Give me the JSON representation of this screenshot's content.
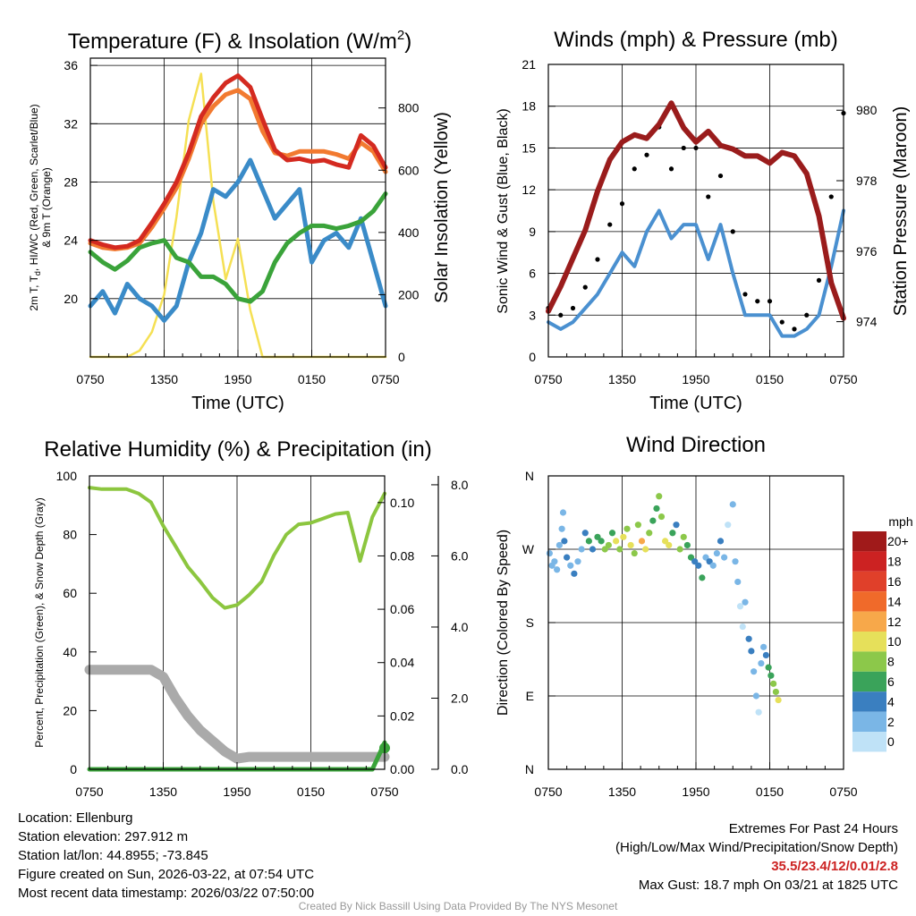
{
  "panels": {
    "temperature": {
      "title": "Temperature (F) & Insolation (W/m",
      "title_sup": "2",
      "title_close": ")",
      "left_label": "2m T, T",
      "left_label_sub": "d",
      "left_label_rest": ", HI/WC (Red, Green, Scarlet/Blue)",
      "left_label_line2": "& 9m T (Orange)",
      "right_label": "Solar Insolation (Yellow)",
      "xlabel": "Time (UTC)"
    },
    "winds": {
      "title": "Winds (mph) & Pressure (mb)",
      "left_label": "Sonic Wind & Gust (Blue, Black)",
      "right_label": "Station Pressure (Maroon)",
      "xlabel": "Time (UTC)"
    },
    "humidity": {
      "title": "Relative Humidity (%) & Precipitation (in)",
      "left_label": "Percent, Precipitation (Green), & Snow Depth (Gray)"
    },
    "direction": {
      "title": "Wind Direction",
      "left_label": "Direction (Colored By Speed)",
      "legend_title": "mph",
      "legend": [
        {
          "label": "20+",
          "color": "#a01a1a"
        },
        {
          "label": "18",
          "color": "#cc2222"
        },
        {
          "label": "16",
          "color": "#e0402a"
        },
        {
          "label": "14",
          "color": "#f06a2a"
        },
        {
          "label": "12",
          "color": "#f7a84a"
        },
        {
          "label": "10",
          "color": "#e6e05a"
        },
        {
          "label": "8",
          "color": "#8cc84a"
        },
        {
          "label": "6",
          "color": "#3aa35a"
        },
        {
          "label": "4",
          "color": "#3a7fc0"
        },
        {
          "label": "2",
          "color": "#7ab6e6"
        },
        {
          "label": "0",
          "color": "#bfe2f7"
        }
      ]
    }
  },
  "info": {
    "location": "Location: Ellenburg",
    "elevation": "Station elevation: 297.912 m",
    "latlon": "Station lat/lon: 44.8955; -73.845",
    "created": "Figure created on Sun, 2026-03-22, at 07:54 UTC",
    "recent": "Most recent data timestamp: 2026/03/22 07:50:00",
    "extremes_title": "Extremes For Past 24 Hours",
    "extremes_sub": "(High/Low/Max Wind/Precipitation/Snow Depth)",
    "extremes_values": "35.5/23.4/12/0.01/2.8",
    "max_gust": "Max Gust: 18.7 mph On 03/21 at 1825 UTC",
    "credit": "Created By Nick Bassill Using Data Provided By The NYS Mesonet"
  },
  "chart_data": [
    {
      "type": "line",
      "title": "Temperature (F) & Insolation (W/m2)",
      "xlabel": "Time (UTC)",
      "ylabel": "2m T, Td, HI/WC (Red, Green, Scarlet/Blue) & 9m T (Orange)",
      "ylabel_right": "Solar Insolation (Yellow)",
      "x_ticks": [
        "0750",
        "1350",
        "1950",
        "0150",
        "0750"
      ],
      "x": [
        0,
        1,
        2,
        3,
        4,
        5,
        6,
        7,
        8,
        9,
        10,
        11,
        12,
        13,
        14,
        15,
        16,
        17,
        18,
        19,
        20,
        21,
        22,
        23,
        24
      ],
      "ylim": [
        16,
        36.5
      ],
      "yticks": [
        20,
        24,
        28,
        32,
        36
      ],
      "y2lim": [
        0,
        960
      ],
      "y2ticks": [
        0,
        200,
        400,
        600,
        800
      ],
      "series": [
        {
          "name": "2m T",
          "color": "#d42a20",
          "axis": "left",
          "values": [
            24.0,
            23.7,
            23.5,
            23.6,
            24.0,
            25.2,
            26.5,
            28.0,
            30.0,
            32.5,
            33.8,
            34.8,
            35.3,
            34.5,
            32.3,
            30.2,
            29.5,
            29.6,
            29.4,
            29.5,
            29.2,
            29.0,
            31.2,
            30.5,
            29.0
          ]
        },
        {
          "name": "9m T",
          "color": "#f27a30",
          "axis": "left",
          "values": [
            23.8,
            23.5,
            23.4,
            23.5,
            23.8,
            24.9,
            26.2,
            27.6,
            29.6,
            32.0,
            33.2,
            34.0,
            34.3,
            33.7,
            31.5,
            30.0,
            29.8,
            30.1,
            30.1,
            30.1,
            29.9,
            29.6,
            30.7,
            30.1,
            28.7
          ]
        },
        {
          "name": "Td",
          "color": "#3aa33a",
          "axis": "left",
          "values": [
            23.2,
            22.5,
            22.0,
            22.6,
            23.5,
            23.8,
            24.0,
            22.8,
            22.5,
            21.5,
            21.5,
            21.0,
            20.0,
            19.8,
            20.5,
            22.5,
            23.8,
            24.5,
            25.0,
            25.0,
            24.8,
            25.0,
            25.3,
            26.0,
            27.2
          ]
        },
        {
          "name": "HI/WC",
          "color": "#3a8bc8",
          "axis": "left",
          "values": [
            19.5,
            20.5,
            19.0,
            21.0,
            20.0,
            19.5,
            18.5,
            19.5,
            22.5,
            24.5,
            27.5,
            27.0,
            28.0,
            29.5,
            27.5,
            25.5,
            26.5,
            27.5,
            22.5,
            24.0,
            24.5,
            23.5,
            25.5,
            22.5,
            19.5
          ]
        },
        {
          "name": "Solar Insolation",
          "color": "#f5e054",
          "axis": "right",
          "values": [
            0,
            0,
            0,
            0,
            20,
            80,
            200,
            450,
            760,
            910,
            500,
            250,
            380,
            150,
            0,
            0,
            0,
            0,
            0,
            0,
            0,
            0,
            0,
            0,
            0
          ]
        }
      ]
    },
    {
      "type": "line",
      "title": "Winds (mph) & Pressure (mb)",
      "xlabel": "Time (UTC)",
      "ylabel": "Sonic Wind & Gust (Blue, Black)",
      "ylabel_right": "Station Pressure (Maroon)",
      "x_ticks": [
        "0750",
        "1350",
        "1950",
        "0150",
        "0750"
      ],
      "x": [
        0,
        1,
        2,
        3,
        4,
        5,
        6,
        7,
        8,
        9,
        10,
        11,
        12,
        13,
        14,
        15,
        16,
        17,
        18,
        19,
        20,
        21,
        22,
        23,
        24
      ],
      "ylim": [
        0,
        21
      ],
      "yticks": [
        0,
        3,
        6,
        9,
        12,
        15,
        18,
        21
      ],
      "y2lim": [
        973,
        981.3
      ],
      "y2ticks": [
        974,
        976,
        978,
        980
      ],
      "series": [
        {
          "name": "Sonic Wind",
          "color": "#4a90d0",
          "axis": "left",
          "values": [
            2.5,
            2.0,
            2.5,
            3.5,
            4.5,
            6.0,
            7.5,
            6.5,
            9.0,
            10.5,
            8.5,
            9.5,
            9.5,
            7.0,
            9.5,
            6.0,
            3.0,
            3.0,
            3.0,
            1.5,
            1.5,
            2.0,
            3.0,
            6.5,
            10.5
          ]
        },
        {
          "name": "Gust",
          "color": "#000000",
          "axis": "left",
          "style": "dots",
          "values": [
            3.5,
            3.0,
            3.5,
            5.0,
            7.0,
            9.5,
            11.0,
            13.5,
            14.5,
            16.5,
            13.5,
            15.0,
            15.0,
            11.5,
            13.0,
            9.0,
            4.5,
            4.0,
            4.0,
            2.5,
            2.0,
            3.0,
            5.5,
            11.5,
            17.5
          ]
        },
        {
          "name": "Station Pressure",
          "color": "#9a1c1c",
          "axis": "right",
          "values": [
            974.3,
            975.0,
            975.8,
            976.6,
            977.7,
            978.6,
            979.1,
            979.3,
            979.2,
            979.6,
            980.2,
            979.5,
            979.1,
            979.4,
            979.0,
            978.9,
            978.7,
            978.7,
            978.5,
            978.8,
            978.7,
            978.2,
            977.0,
            975.1,
            974.1
          ]
        }
      ]
    },
    {
      "type": "line",
      "title": "Relative Humidity (%) & Precipitation (in)",
      "ylabel": "Percent, Precipitation (Green), & Snow Depth (Gray)",
      "x_ticks": [
        "0750",
        "1350",
        "1950",
        "0150",
        "0750"
      ],
      "x": [
        0,
        1,
        2,
        3,
        4,
        5,
        6,
        7,
        8,
        9,
        10,
        11,
        12,
        13,
        14,
        15,
        16,
        17,
        18,
        19,
        20,
        21,
        22,
        23,
        24
      ],
      "ylim": [
        0,
        100
      ],
      "yticks": [
        0,
        20,
        40,
        60,
        80,
        100
      ],
      "y2lim": [
        0,
        0.11
      ],
      "y2ticks": [
        0.0,
        0.02,
        0.04,
        0.06,
        0.08,
        0.1
      ],
      "y3lim": [
        0,
        8.25
      ],
      "y3ticks": [
        0.0,
        2.0,
        4.0,
        6.0,
        8.0
      ],
      "series": [
        {
          "name": "Relative Humidity",
          "color": "#8cc63f",
          "axis": "left",
          "values": [
            96,
            95.5,
            95.5,
            95.5,
            94,
            91,
            83,
            76,
            69,
            64,
            58.5,
            55,
            56,
            59.5,
            64,
            73,
            80,
            83.5,
            84,
            85.5,
            87,
            87.5,
            71,
            86,
            94
          ]
        },
        {
          "name": "Snow Depth",
          "color": "#aaaaaa",
          "axis": "third",
          "values": [
            2.8,
            2.8,
            2.8,
            2.8,
            2.8,
            2.8,
            2.6,
            2.0,
            1.5,
            1.1,
            0.8,
            0.5,
            0.3,
            0.35,
            0.35,
            0.35,
            0.35,
            0.35,
            0.35,
            0.35,
            0.35,
            0.35,
            0.35,
            0.35,
            0.35
          ]
        },
        {
          "name": "Precipitation",
          "color": "#3aa33a",
          "axis": "right",
          "values": [
            0,
            0,
            0,
            0,
            0,
            0,
            0,
            0,
            0,
            0,
            0,
            0,
            0,
            0,
            0,
            0,
            0,
            0,
            0,
            0,
            0,
            0,
            0,
            0,
            0.01
          ]
        }
      ]
    },
    {
      "type": "scatter",
      "title": "Wind Direction",
      "ylabel": "Direction (Colored By Speed)",
      "x_ticks": [
        "0750",
        "1350",
        "1950",
        "0150",
        "0750"
      ],
      "y_ticks": [
        "N",
        "E",
        "S",
        "W",
        "N"
      ],
      "ylim": [
        0,
        360
      ],
      "colorbar": {
        "title": "mph",
        "levels": [
          "0",
          "2",
          "4",
          "6",
          "8",
          "10",
          "12",
          "14",
          "16",
          "18",
          "20+"
        ]
      },
      "points": [
        [
          0.1,
          265,
          2
        ],
        [
          0.3,
          250,
          3
        ],
        [
          0.5,
          255,
          3
        ],
        [
          0.7,
          245,
          2
        ],
        [
          0.9,
          275,
          2
        ],
        [
          1.1,
          295,
          3
        ],
        [
          1.2,
          315,
          2
        ],
        [
          1.3,
          280,
          4
        ],
        [
          1.5,
          260,
          4
        ],
        [
          1.8,
          250,
          3
        ],
        [
          2.1,
          240,
          4
        ],
        [
          2.4,
          255,
          3
        ],
        [
          2.7,
          270,
          3
        ],
        [
          3.0,
          290,
          4
        ],
        [
          3.3,
          280,
          6
        ],
        [
          3.6,
          270,
          5
        ],
        [
          4.0,
          285,
          6
        ],
        [
          4.3,
          280,
          7
        ],
        [
          4.6,
          270,
          8
        ],
        [
          4.9,
          275,
          9
        ],
        [
          5.2,
          290,
          7
        ],
        [
          5.5,
          280,
          10
        ],
        [
          5.8,
          270,
          8
        ],
        [
          6.1,
          285,
          11
        ],
        [
          6.4,
          295,
          8
        ],
        [
          6.7,
          275,
          10
        ],
        [
          7.0,
          265,
          9
        ],
        [
          7.3,
          300,
          8
        ],
        [
          7.6,
          280,
          12
        ],
        [
          7.9,
          270,
          10
        ],
        [
          8.2,
          290,
          8
        ],
        [
          8.5,
          305,
          6
        ],
        [
          8.8,
          320,
          7
        ],
        [
          9.0,
          335,
          8
        ],
        [
          9.2,
          310,
          9
        ],
        [
          9.5,
          280,
          11
        ],
        [
          9.8,
          275,
          10
        ],
        [
          10.1,
          290,
          7
        ],
        [
          10.4,
          300,
          4
        ],
        [
          10.7,
          270,
          9
        ],
        [
          11.0,
          285,
          8
        ],
        [
          11.3,
          275,
          6
        ],
        [
          11.6,
          260,
          7
        ],
        [
          11.9,
          255,
          4
        ],
        [
          12.2,
          250,
          5
        ],
        [
          12.5,
          235,
          6
        ],
        [
          12.8,
          260,
          3
        ],
        [
          13.1,
          255,
          4
        ],
        [
          13.4,
          250,
          3
        ],
        [
          13.7,
          265,
          2
        ],
        [
          14.0,
          280,
          4
        ],
        [
          14.3,
          260,
          3
        ],
        [
          14.6,
          300,
          1
        ],
        [
          15.0,
          325,
          2
        ],
        [
          15.2,
          255,
          2
        ],
        [
          15.4,
          230,
          2
        ],
        [
          15.6,
          200,
          1
        ],
        [
          15.8,
          175,
          1
        ],
        [
          16.0,
          205,
          2
        ],
        [
          16.3,
          160,
          4
        ],
        [
          16.5,
          145,
          5
        ],
        [
          16.7,
          120,
          3
        ],
        [
          16.9,
          90,
          2
        ],
        [
          17.1,
          70,
          1
        ],
        [
          17.3,
          130,
          2
        ],
        [
          17.5,
          150,
          3
        ],
        [
          17.7,
          140,
          5
        ],
        [
          17.9,
          125,
          6
        ],
        [
          18.1,
          115,
          7
        ],
        [
          18.3,
          105,
          8
        ],
        [
          18.5,
          95,
          9
        ],
        [
          18.7,
          85,
          10
        ]
      ]
    }
  ]
}
